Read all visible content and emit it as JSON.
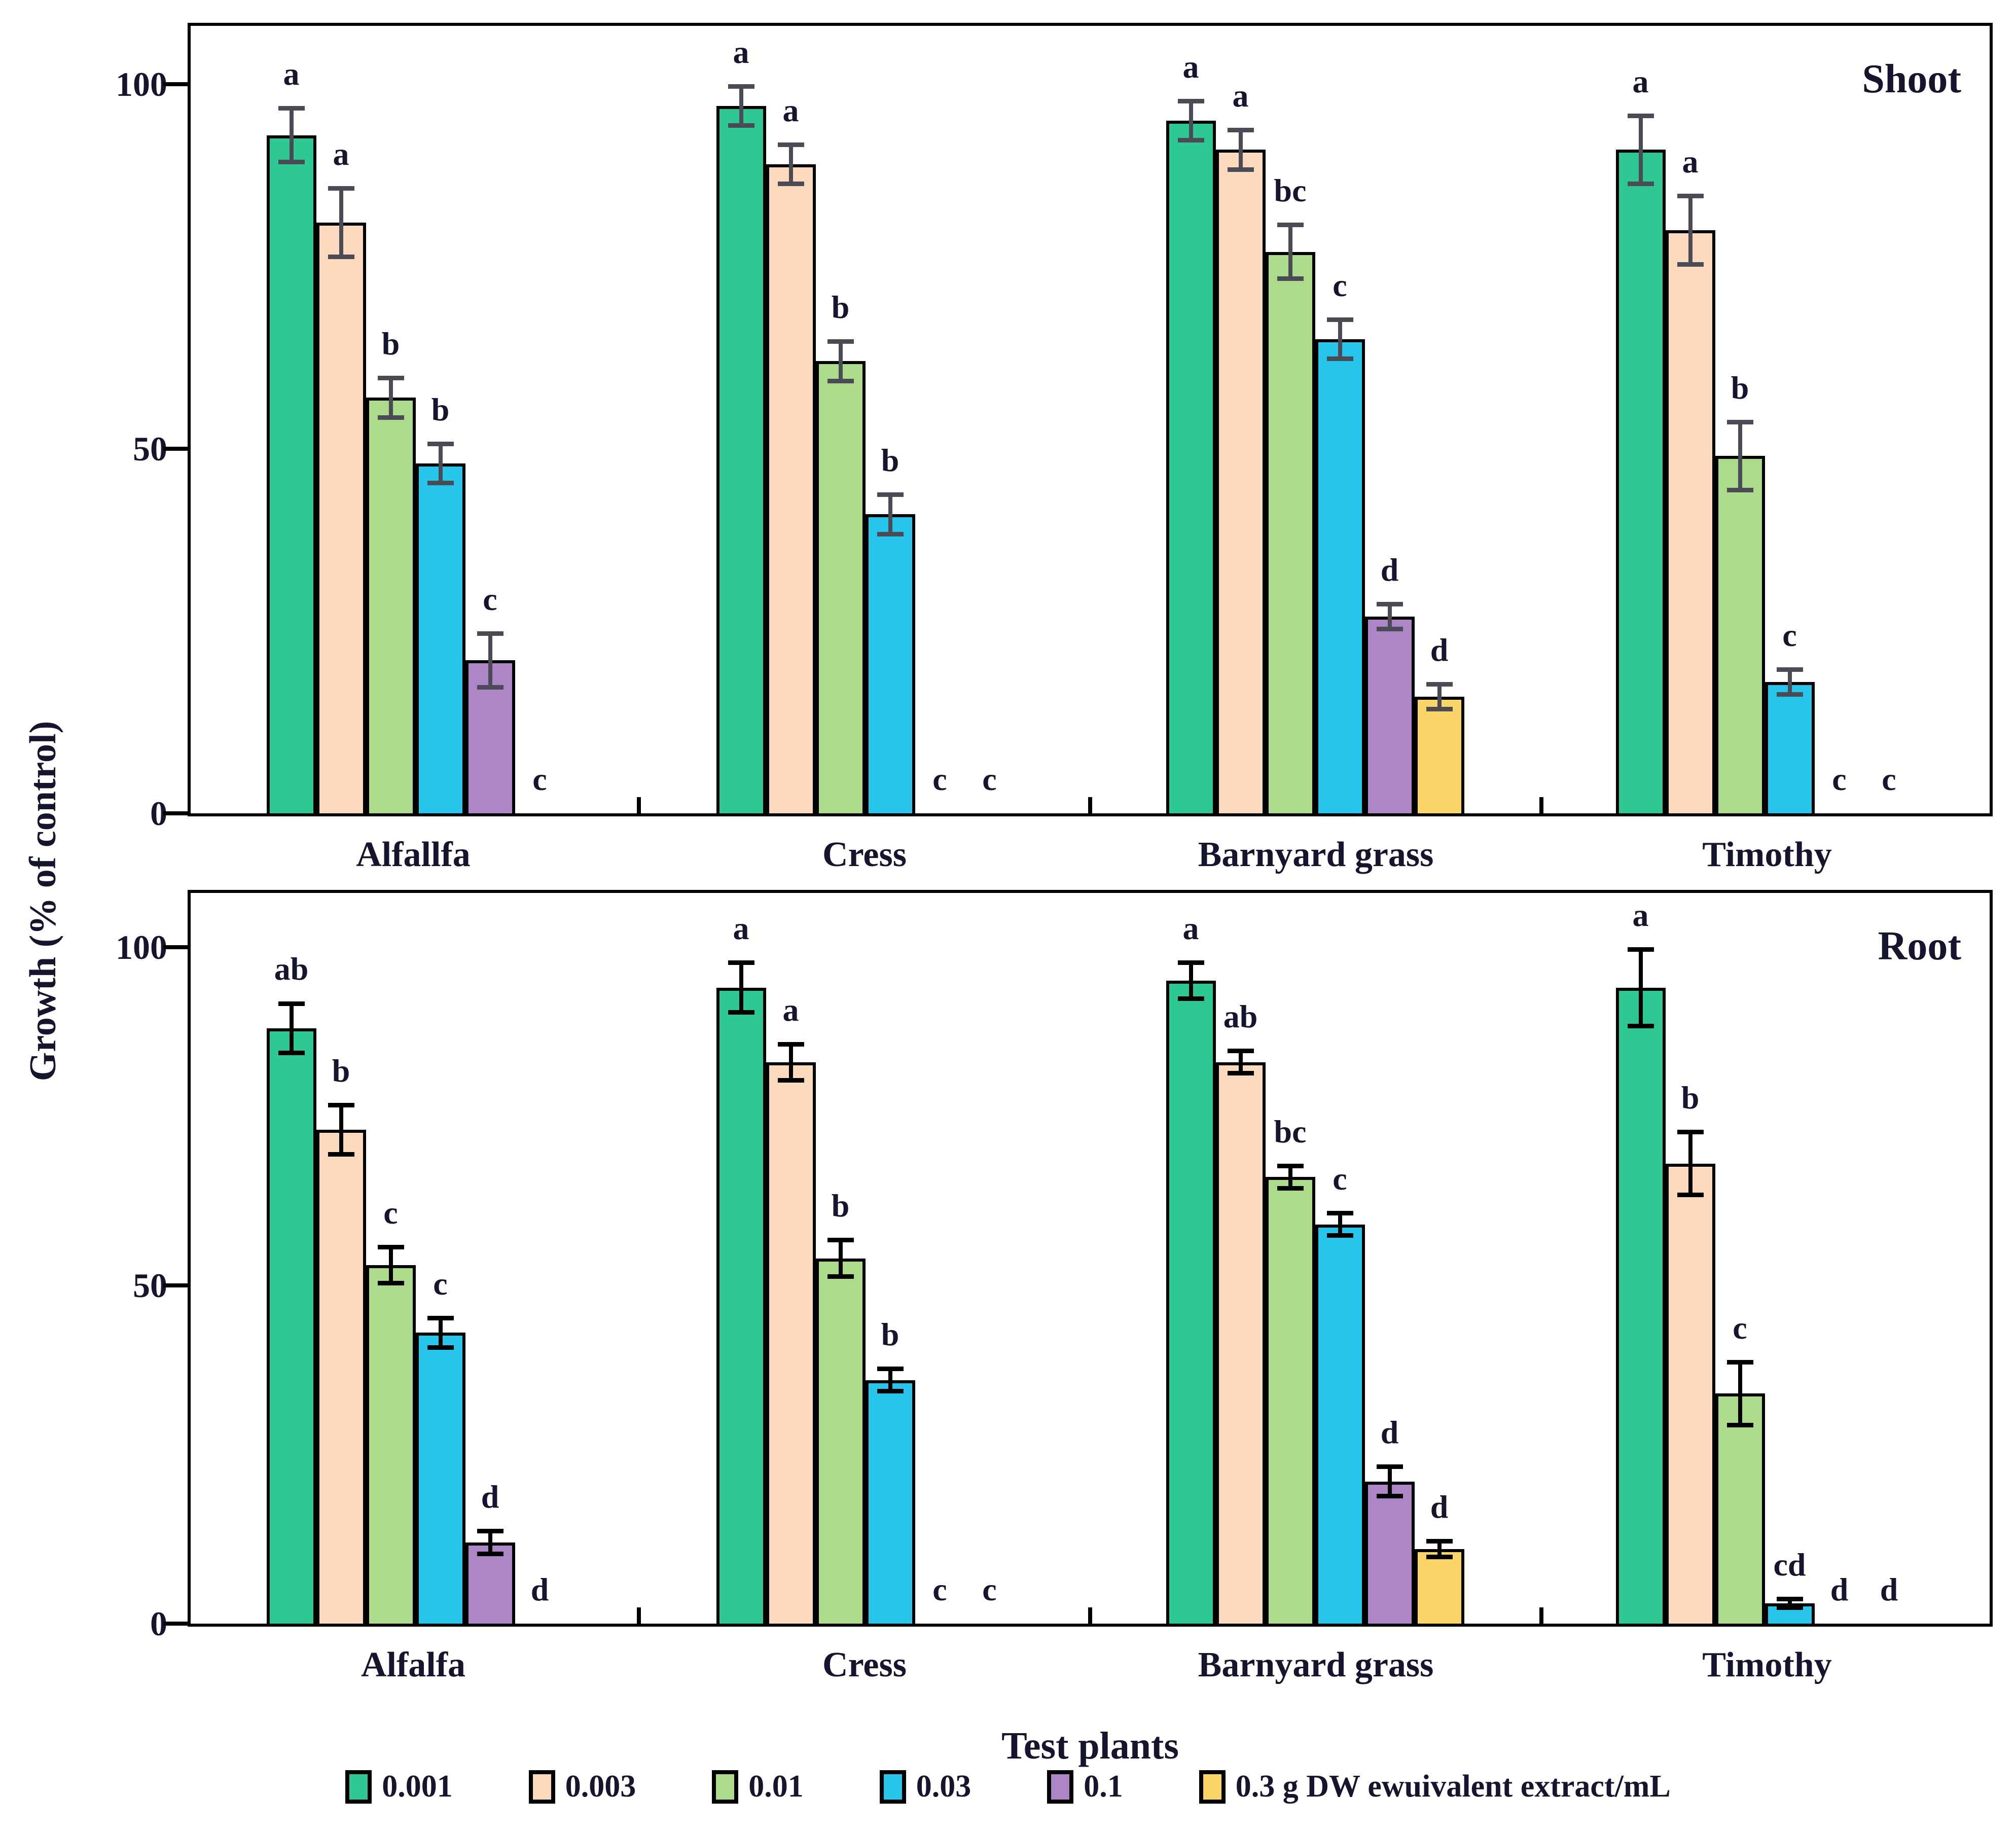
{
  "figure": {
    "y_axis_label": "Growth (% of control)",
    "x_axis_label": "Test plants",
    "text_color": "#15152d",
    "legend": {
      "items": [
        {
          "label": "0.001",
          "color": "#2EC893"
        },
        {
          "label": "0.003",
          "color": "#FBDABE"
        },
        {
          "label": "0.01",
          "color": "#ADDB8C"
        },
        {
          "label": "0.03",
          "color": "#27C5EC"
        },
        {
          "label": "0.1",
          "color": "#AC86C6"
        },
        {
          "label": "0.3 g DW ewuivalent extract/mL",
          "color": "#FBD468"
        }
      ]
    }
  },
  "chart_data": [
    {
      "type": "bar",
      "title": "Shoot",
      "categories": [
        "Alfallfa",
        "Cress",
        "Barnyard grass",
        "Timothy"
      ],
      "ylabel": "Growth (% of control)",
      "ylim": [
        0,
        108
      ],
      "yticks": [
        0,
        50,
        100
      ],
      "grid": false,
      "error_bar_color": "#4b4b55",
      "series": [
        {
          "name": "0.001",
          "color": "#2EC893",
          "values": [
            93,
            97,
            95,
            91
          ],
          "errors": [
            4,
            3,
            3,
            5
          ],
          "letters": [
            "a",
            "a",
            "a",
            "a"
          ]
        },
        {
          "name": "0.003",
          "color": "#FBDABE",
          "values": [
            81,
            89,
            91,
            80
          ],
          "errors": [
            5,
            3,
            3,
            5
          ],
          "letters": [
            "a",
            "a",
            "a",
            "a"
          ]
        },
        {
          "name": "0.01",
          "color": "#ADDB8C",
          "values": [
            57,
            62,
            77,
            49
          ],
          "errors": [
            3,
            3,
            4,
            5
          ],
          "letters": [
            "b",
            "b",
            "bc",
            "b"
          ]
        },
        {
          "name": "0.03",
          "color": "#27C5EC",
          "values": [
            48,
            41,
            65,
            18
          ],
          "errors": [
            3,
            3,
            3,
            2
          ],
          "letters": [
            "b",
            "b",
            "c",
            "c"
          ]
        },
        {
          "name": "0.1",
          "color": "#AC86C6",
          "values": [
            21,
            0,
            27,
            0
          ],
          "errors": [
            4,
            0,
            2,
            0
          ],
          "letters": [
            "c",
            "c",
            "d",
            "c"
          ]
        },
        {
          "name": "0.3",
          "color": "#FBD468",
          "values": [
            0,
            0,
            16,
            0
          ],
          "errors": [
            0,
            0,
            2,
            0
          ],
          "letters": [
            "c",
            "c",
            "d",
            "c"
          ]
        }
      ]
    },
    {
      "type": "bar",
      "title": "Root",
      "categories": [
        "Alfalfa",
        "Cress",
        "Barnyard grass",
        "Timothy"
      ],
      "ylabel": "Growth (% of control)",
      "ylim": [
        0,
        108
      ],
      "yticks": [
        0,
        50,
        100
      ],
      "grid": false,
      "error_bar_color": "#000000",
      "series": [
        {
          "name": "0.001",
          "color": "#2EC893",
          "values": [
            88,
            94,
            95,
            94
          ],
          "errors": [
            4,
            4,
            3,
            6
          ],
          "letters": [
            "ab",
            "a",
            "a",
            "a"
          ]
        },
        {
          "name": "0.003",
          "color": "#FBDABE",
          "values": [
            73,
            83,
            83,
            68
          ],
          "errors": [
            4,
            3,
            2,
            5
          ],
          "letters": [
            "b",
            "a",
            "ab",
            "b"
          ]
        },
        {
          "name": "0.01",
          "color": "#ADDB8C",
          "values": [
            53,
            54,
            66,
            34
          ],
          "errors": [
            3,
            3,
            2,
            5
          ],
          "letters": [
            "c",
            "b",
            "bc",
            "c"
          ]
        },
        {
          "name": "0.03",
          "color": "#27C5EC",
          "values": [
            43,
            36,
            59,
            3
          ],
          "errors": [
            2.5,
            2,
            2,
            1
          ],
          "letters": [
            "c",
            "b",
            "c",
            "cd"
          ]
        },
        {
          "name": "0.1",
          "color": "#AC86C6",
          "values": [
            12,
            0,
            21,
            0
          ],
          "errors": [
            2,
            0,
            2.5,
            0
          ],
          "letters": [
            "d",
            "c",
            "d",
            "d"
          ]
        },
        {
          "name": "0.3",
          "color": "#FBD468",
          "values": [
            0,
            0,
            11,
            0
          ],
          "errors": [
            0,
            0,
            1.5,
            0
          ],
          "letters": [
            "d",
            "c",
            "d",
            "d"
          ]
        }
      ]
    }
  ]
}
